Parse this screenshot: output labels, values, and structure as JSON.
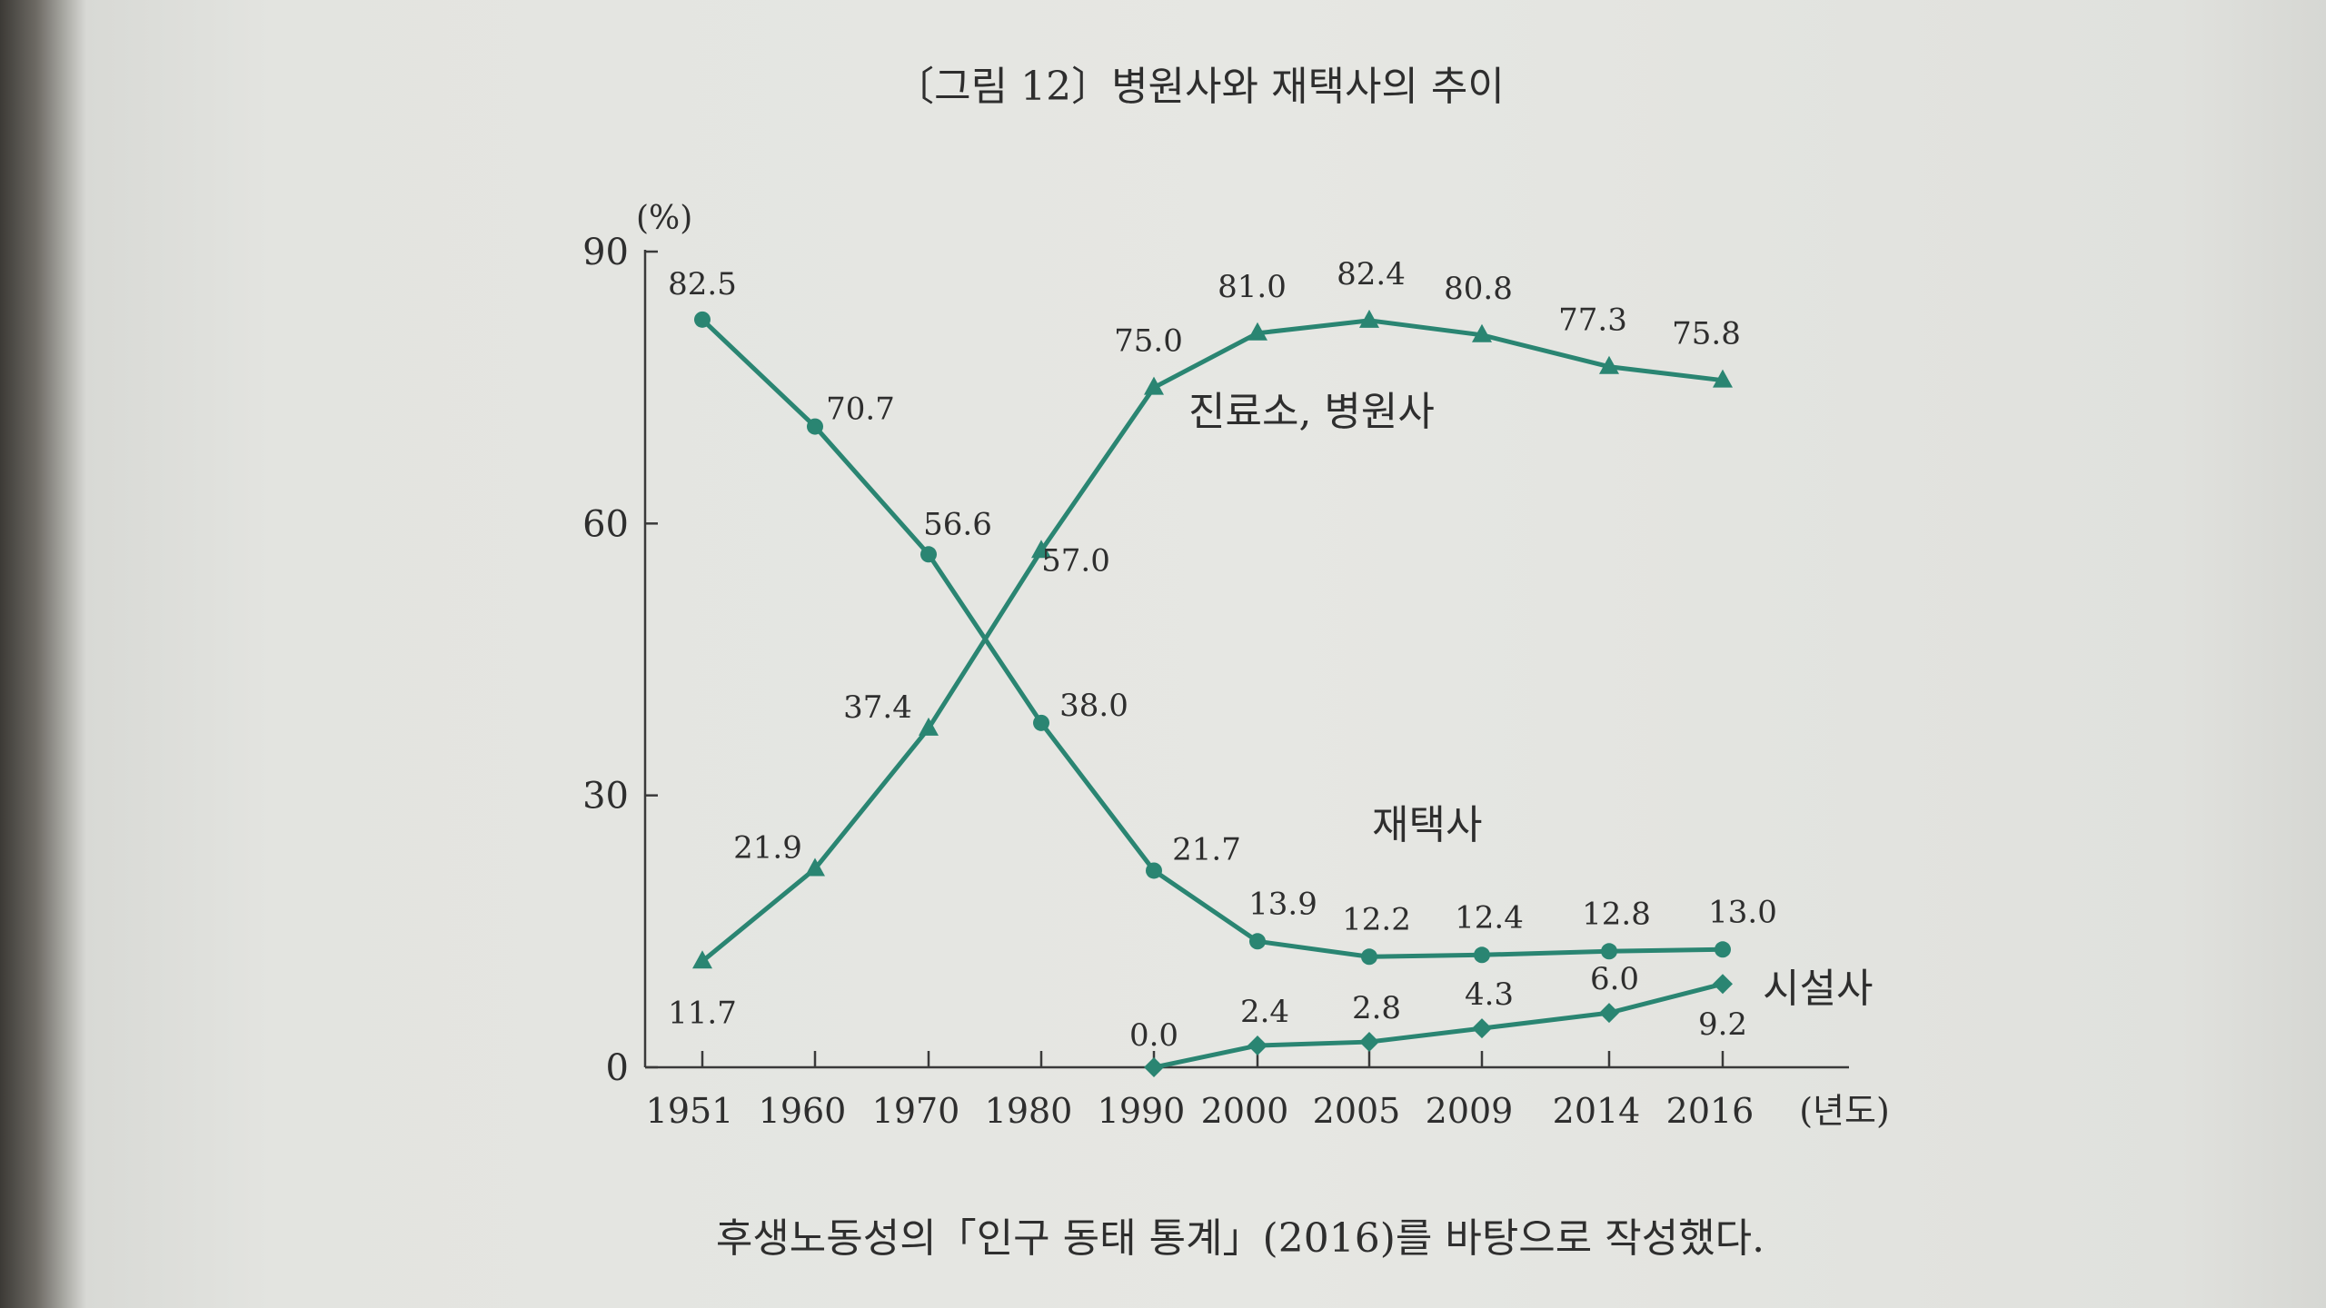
{
  "figure_title": "〔그림 12〕병원사와 재택사의 추이",
  "caption": "후생노동성의「인구 동태 통계」(2016)를 바탕으로 작성했다.",
  "colors": {
    "line": "#2a8572",
    "text": "#2e2e2e",
    "axis": "#3a3a3a"
  },
  "chart_data": {
    "type": "line",
    "title": "〔그림 12〕병원사와 재택사의 추이",
    "ylabel": "(%)",
    "xlabel": "(년도)",
    "ylim": [
      0,
      90
    ],
    "yticks": [
      0,
      30,
      60,
      90
    ],
    "ytick_labels": [
      "0",
      "30",
      "60",
      "90"
    ],
    "categories": [
      "1951",
      "1960",
      "1970",
      "1980",
      "1990",
      "2000",
      "2005",
      "2009",
      "2014",
      "2016"
    ],
    "grid": false,
    "series": [
      {
        "name": "진료소, 병원사",
        "marker": "triangle",
        "values": [
          11.7,
          21.9,
          37.4,
          57.0,
          75.0,
          81.0,
          82.4,
          80.8,
          77.3,
          75.8
        ],
        "labels": [
          "11.7",
          "21.9",
          "37.4",
          "57.0",
          "75.0",
          "81.0",
          "82.4",
          "80.8",
          "77.3",
          "75.8"
        ]
      },
      {
        "name": "재택사",
        "marker": "circle",
        "values": [
          82.5,
          70.7,
          56.6,
          38.0,
          21.7,
          13.9,
          12.2,
          12.4,
          12.8,
          13.0
        ],
        "labels": [
          "82.5",
          "70.7",
          "56.6",
          "38.0",
          "21.7",
          "13.9",
          "12.2",
          "12.4",
          "12.8",
          "13.0"
        ]
      },
      {
        "name": "시설사",
        "marker": "diamond",
        "values": [
          null,
          null,
          null,
          null,
          0.0,
          2.4,
          2.8,
          4.3,
          6.0,
          9.2
        ],
        "labels": [
          null,
          null,
          null,
          null,
          "0.0",
          "2.4",
          "2.8",
          "4.3",
          "6.0",
          "9.2"
        ]
      }
    ]
  }
}
